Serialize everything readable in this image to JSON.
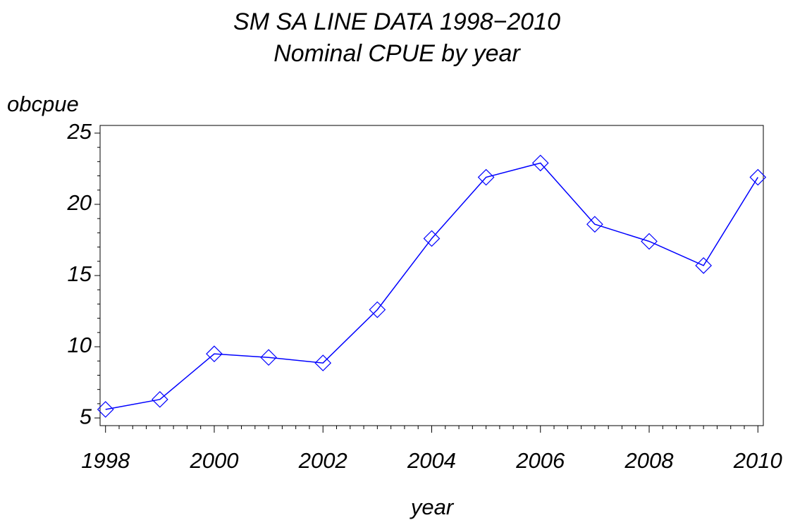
{
  "chart_data": {
    "type": "line",
    "title": "SM SA LINE DATA 1998−2010",
    "subtitle": "Nominal CPUE by year",
    "x_label": "year",
    "y_label": "obcpue",
    "x": [
      1998,
      1999,
      2000,
      2001,
      2002,
      2003,
      2004,
      2005,
      2006,
      2007,
      2008,
      2009,
      2010
    ],
    "series": [
      {
        "name": "obcpue",
        "color": "#0000ff",
        "values": [
          5.6,
          6.3,
          9.5,
          9.25,
          8.86,
          12.6,
          17.6,
          21.9,
          22.9,
          18.6,
          17.4,
          15.7,
          21.9
        ]
      }
    ],
    "xlim": [
      1997.9,
      2010.1
    ],
    "ylim": [
      4.46,
      25.54
    ],
    "xticks": [
      1998,
      2000,
      2002,
      2004,
      2006,
      2008,
      2010
    ],
    "yticks": [
      5,
      10,
      15,
      20,
      25
    ],
    "marker": "diamond"
  }
}
